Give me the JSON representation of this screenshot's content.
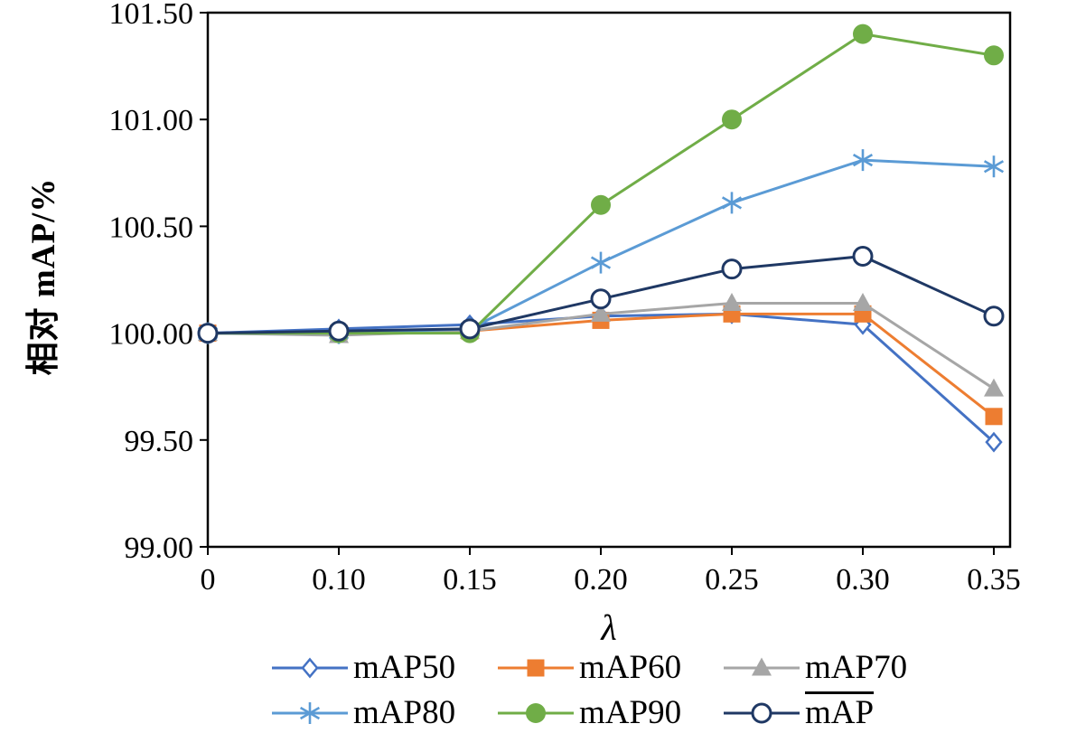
{
  "figure": {
    "background": "#ffffff",
    "frame_color": "#000000"
  },
  "chart_data": {
    "type": "line",
    "title": "",
    "xlabel": "λ",
    "ylabel": "相对 mAP/%",
    "x_categories": [
      "0",
      "0.10",
      "0.15",
      "0.20",
      "0.25",
      "0.30",
      "0.35"
    ],
    "y_ticks": [
      "99.00",
      "99.50",
      "100.00",
      "100.50",
      "101.00",
      "101.50"
    ],
    "ylim": [
      99.0,
      101.5
    ],
    "grid": false,
    "legend_position": "bottom",
    "series": [
      {
        "name": "mAP50",
        "color": "#4472c4",
        "marker": "diamond-open",
        "values": [
          100.0,
          100.02,
          100.04,
          100.08,
          100.09,
          100.04,
          99.49
        ]
      },
      {
        "name": "mAP60",
        "color": "#ed7d31",
        "marker": "square",
        "values": [
          100.0,
          100.0,
          100.01,
          100.06,
          100.09,
          100.09,
          99.61
        ]
      },
      {
        "name": "mAP70",
        "color": "#a6a6a6",
        "marker": "triangle",
        "values": [
          100.0,
          99.99,
          100.01,
          100.09,
          100.14,
          100.14,
          99.74
        ]
      },
      {
        "name": "mAP80",
        "color": "#5b9bd5",
        "marker": "asterisk",
        "values": [
          100.0,
          100.0,
          100.02,
          100.33,
          100.61,
          100.81,
          100.78
        ]
      },
      {
        "name": "mAP90",
        "color": "#70ad47",
        "marker": "circle",
        "values": [
          100.0,
          100.0,
          100.0,
          100.6,
          101.0,
          101.4,
          101.3
        ]
      },
      {
        "name": "mAP",
        "overline": true,
        "color": "#1f3864",
        "marker": "circle-open",
        "values": [
          100.0,
          100.01,
          100.02,
          100.16,
          100.3,
          100.36,
          100.08
        ]
      }
    ]
  }
}
